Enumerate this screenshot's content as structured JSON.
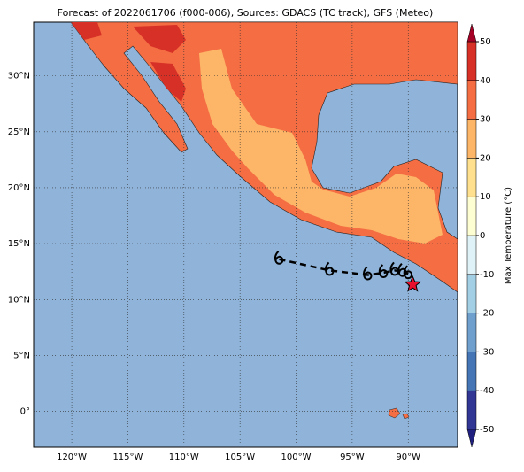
{
  "map": {
    "title": "Forecast of 2022061706 (f000-006), Sources: GDACS (TC track), GFS (Meteo)",
    "lonlim": [
      -123.4,
      -85.6
    ],
    "latlim": [
      -3.2,
      34.8
    ],
    "xticks": [
      {
        "value": -120,
        "label": "120°W"
      },
      {
        "value": -115,
        "label": "115°W"
      },
      {
        "value": -110,
        "label": "110°W"
      },
      {
        "value": -105,
        "label": "105°W"
      },
      {
        "value": -100,
        "label": "100°W"
      },
      {
        "value": -95,
        "label": "95°W"
      },
      {
        "value": -90,
        "label": "90°W"
      }
    ],
    "yticks": [
      {
        "value": 0,
        "label": "0°"
      },
      {
        "value": 5,
        "label": "5°N"
      },
      {
        "value": 10,
        "label": "10°N"
      },
      {
        "value": 15,
        "label": "15°N"
      },
      {
        "value": 20,
        "label": "20°N"
      },
      {
        "value": 25,
        "label": "25°N"
      },
      {
        "value": 30,
        "label": "30°N"
      }
    ],
    "track": {
      "lon": [
        -101.5,
        -97.0,
        -93.6,
        -92.2,
        -91.2,
        -90.5,
        -90.0
      ],
      "lat": [
        13.6,
        12.6,
        12.2,
        12.4,
        12.6,
        12.5,
        12.3
      ]
    },
    "star": {
      "lon": -89.6,
      "lat": 11.35
    },
    "colorbar": {
      "label": "Max Temperature (°C)",
      "lim": [
        -50,
        50
      ],
      "ticks": [
        -50,
        -40,
        -30,
        -20,
        -10,
        0,
        10,
        20,
        30,
        40,
        50
      ],
      "colors": [
        "#313695",
        "#4575b4",
        "#6f9fcc",
        "#a3cfe4",
        "#dff2f7",
        "#fdfed2",
        "#fee08f",
        "#fdb567",
        "#f46d43",
        "#d73027"
      ],
      "under": "#202080",
      "over": "#a50026"
    }
  }
}
